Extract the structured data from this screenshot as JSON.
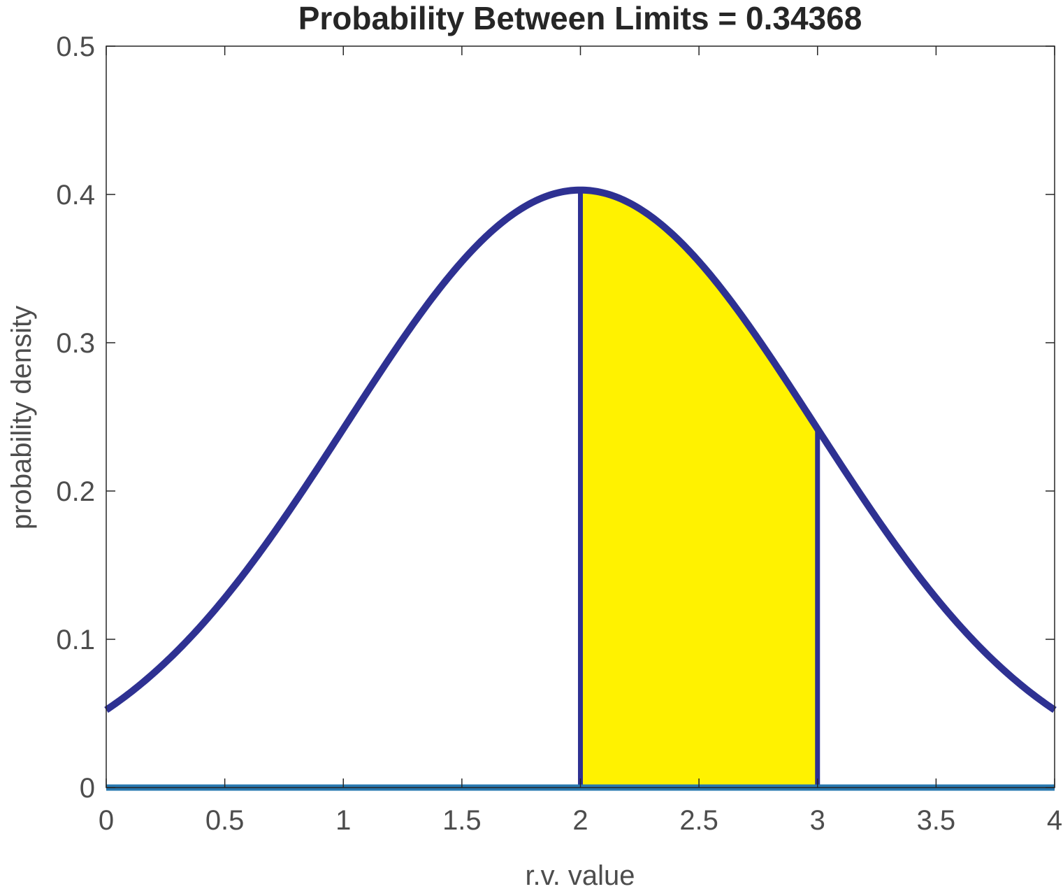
{
  "chart_data": {
    "type": "area",
    "title": "Probability Between Limits = 0.34368",
    "xlabel": "r.v. value",
    "ylabel": "probability density",
    "xlim": [
      0,
      4
    ],
    "ylim": [
      0,
      0.5
    ],
    "x_ticks": [
      "0",
      "0.5",
      "1",
      "1.5",
      "2",
      "2.5",
      "3",
      "3.5",
      "4"
    ],
    "y_ticks": [
      "0",
      "0.1",
      "0.2",
      "0.3",
      "0.4",
      "0.5"
    ],
    "grid": false,
    "distribution": {
      "family": "normal",
      "mean": 2,
      "sd": 0.99
    },
    "shaded_interval": [
      2,
      3
    ],
    "probability_between_limits": 0.34368,
    "series": [
      {
        "x": [
          0,
          0.25,
          0.5,
          0.75,
          1,
          1.25,
          1.5,
          1.75,
          2,
          2.25,
          2.5,
          2.75,
          3,
          3.25,
          3.5,
          3.75,
          4
        ],
        "values": [
          0.052,
          0.081,
          0.12,
          0.169,
          0.242,
          0.301,
          0.356,
          0.391,
          0.403,
          0.391,
          0.356,
          0.301,
          0.242,
          0.169,
          0.12,
          0.081,
          0.052
        ]
      }
    ],
    "colors": {
      "curve": "#2e3192",
      "fill": "#fff200",
      "fill_edge": "#262626",
      "baseline": "#2778b0",
      "axes": "#262626",
      "text": "#4d4d4d"
    }
  }
}
